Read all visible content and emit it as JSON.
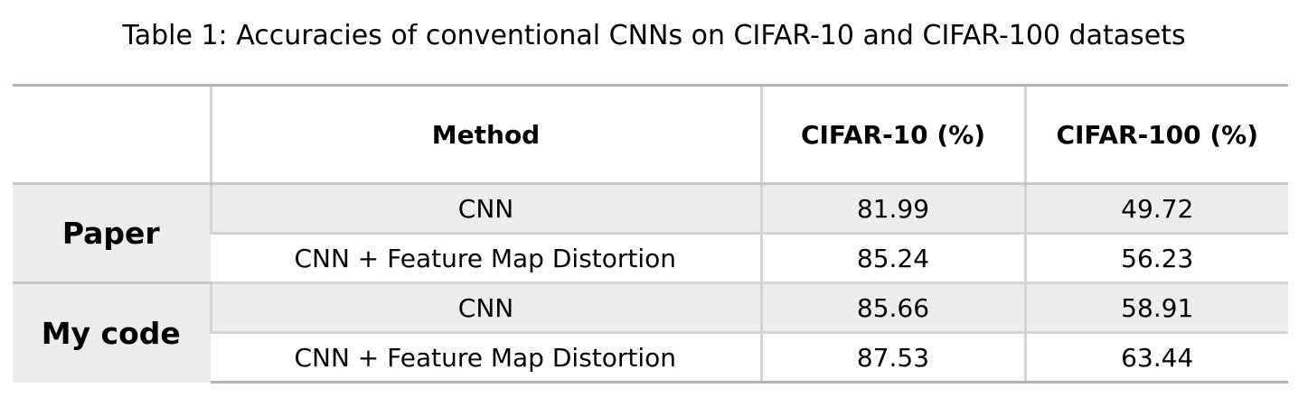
{
  "caption": "Table 1: Accuracies of conventional CNNs on CIFAR-10 and CIFAR-100 datasets",
  "table": {
    "headers": [
      "",
      "Method",
      "CIFAR-10 (%)",
      "CIFAR-100 (%)"
    ],
    "groups": [
      {
        "label": "Paper",
        "rows": [
          {
            "method": "CNN",
            "cifar10": "81.99",
            "cifar100": "49.72"
          },
          {
            "method": "CNN + Feature Map Distortion",
            "cifar10": "85.24",
            "cifar100": "56.23"
          }
        ]
      },
      {
        "label": "My code",
        "rows": [
          {
            "method": "CNN",
            "cifar10": "85.66",
            "cifar100": "58.91"
          },
          {
            "method": "CNN + Feature Map Distortion",
            "cifar10": "87.53",
            "cifar100": "63.44"
          }
        ]
      }
    ]
  }
}
